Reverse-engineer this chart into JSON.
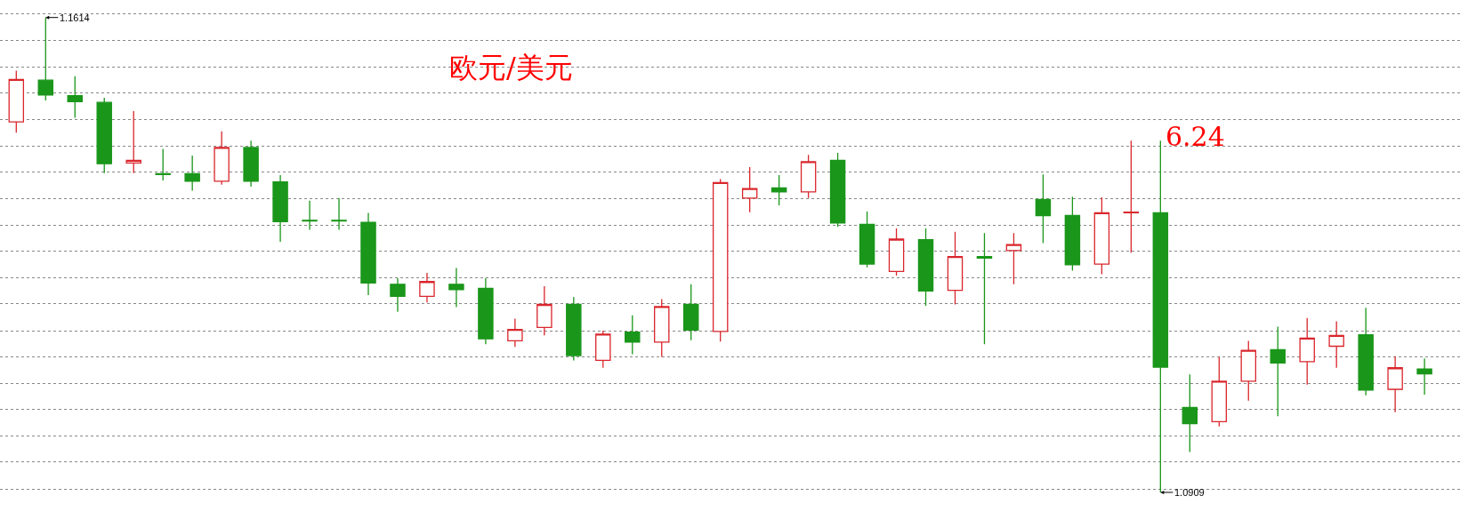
{
  "chart_data": {
    "type": "candlestick",
    "title": "欧元/美元",
    "categories": [
      null,
      null,
      null,
      null,
      null,
      null,
      null,
      null,
      null,
      null,
      null,
      null,
      null,
      null,
      null,
      null,
      null,
      null,
      null,
      null,
      null,
      null,
      null,
      null,
      null,
      null,
      null,
      null,
      null,
      null,
      null,
      null,
      null,
      null,
      null,
      null,
      null,
      null,
      null,
      null,
      null,
      null,
      null,
      null,
      null,
      null,
      null,
      null,
      null
    ],
    "ohlc": [
      [
        1.1459,
        1.1535,
        1.1443,
        1.1522
      ],
      [
        1.1521,
        1.1614,
        1.1491,
        1.1499
      ],
      [
        1.1498,
        1.1527,
        1.1465,
        1.1489
      ],
      [
        1.1488,
        1.1495,
        1.1383,
        1.1397
      ],
      [
        1.1398,
        1.1475,
        1.1383,
        1.1402
      ],
      [
        1.1382,
        1.1419,
        1.1372,
        1.1381
      ],
      [
        1.1382,
        1.1409,
        1.1357,
        1.1371
      ],
      [
        1.1371,
        1.1445,
        1.1366,
        1.1421
      ],
      [
        1.1421,
        1.1431,
        1.1363,
        1.1371
      ],
      [
        1.137,
        1.138,
        1.1281,
        1.1311
      ],
      [
        1.1313,
        1.1342,
        1.1299,
        1.1312
      ],
      [
        1.1313,
        1.1346,
        1.1299,
        1.1312
      ],
      [
        1.131,
        1.1324,
        1.1202,
        1.122
      ],
      [
        1.1218,
        1.1227,
        1.1177,
        1.12
      ],
      [
        1.12,
        1.1235,
        1.1191,
        1.1222
      ],
      [
        1.1218,
        1.1242,
        1.1184,
        1.121
      ],
      [
        1.1212,
        1.1227,
        1.1129,
        1.1137
      ],
      [
        1.1134,
        1.1167,
        1.1125,
        1.1151
      ],
      [
        1.1154,
        1.1215,
        1.1142,
        1.1188
      ],
      [
        1.1188,
        1.1199,
        1.1105,
        1.1112
      ],
      [
        1.1105,
        1.1149,
        1.1094,
        1.1144
      ],
      [
        1.1147,
        1.1172,
        1.1114,
        1.1132
      ],
      [
        1.1132,
        1.1196,
        1.111,
        1.1185
      ],
      [
        1.1188,
        1.1218,
        1.1135,
        1.115
      ],
      [
        1.1148,
        1.1374,
        1.1133,
        1.1369
      ],
      [
        1.1346,
        1.1392,
        1.1325,
        1.136
      ],
      [
        1.1361,
        1.138,
        1.1335,
        1.1355
      ],
      [
        1.1355,
        1.141,
        1.1346,
        1.14
      ],
      [
        1.1402,
        1.1413,
        1.1303,
        1.1309
      ],
      [
        1.1307,
        1.1326,
        1.1243,
        1.1248
      ],
      [
        1.1237,
        1.1301,
        1.1231,
        1.1285
      ],
      [
        1.1284,
        1.1301,
        1.1186,
        1.1208
      ],
      [
        1.1209,
        1.1296,
        1.1188,
        1.1259
      ],
      [
        1.1259,
        1.1294,
        1.1129,
        1.1257
      ],
      [
        1.1268,
        1.1294,
        1.1218,
        1.1277
      ],
      [
        1.1344,
        1.1381,
        1.1279,
        1.132
      ],
      [
        1.132,
        1.1348,
        1.1238,
        1.1247
      ],
      [
        1.1248,
        1.1347,
        1.1233,
        1.1324
      ],
      [
        1.1324,
        1.1431,
        1.1265,
        1.1325
      ],
      [
        1.1324,
        1.1431,
        1.0909,
        1.1095
      ],
      [
        1.1035,
        1.1084,
        1.0969,
        1.1011
      ],
      [
        1.1014,
        1.111,
        1.1007,
        1.1074
      ],
      [
        1.1074,
        1.1134,
        1.1045,
        1.112
      ],
      [
        1.1121,
        1.1155,
        1.1022,
        1.1101
      ],
      [
        1.1103,
        1.1168,
        1.1069,
        1.1138
      ],
      [
        1.1126,
        1.1163,
        1.1094,
        1.1142
      ],
      [
        1.1143,
        1.1183,
        1.1053,
        1.1061
      ],
      [
        1.1062,
        1.1111,
        1.1028,
        1.1094
      ],
      [
        1.1092,
        1.1108,
        1.1054,
        1.1085
      ]
    ],
    "colors": [
      "#d9262c",
      "#1a961a",
      "#1a961a",
      "#1a961a",
      "#d9262c",
      "#1a961a",
      "#1a961a",
      "#d9262c",
      "#1a961a",
      "#1a961a",
      "#1a961a",
      "#1a961a",
      "#1a961a",
      "#1a961a",
      "#d9262c",
      "#1a961a",
      "#1a961a",
      "#d9262c",
      "#d9262c",
      "#1a961a",
      "#d9262c",
      "#1a961a",
      "#d9262c",
      "#1a961a",
      "#d9262c",
      "#d9262c",
      "#1a961a",
      "#d9262c",
      "#1a961a",
      "#1a961a",
      "#d9262c",
      "#1a961a",
      "#d9262c",
      "#1a961a",
      "#d9262c",
      "#1a961a",
      "#1a961a",
      "#d9262c",
      "#d9262c",
      "#1a961a",
      "#1a961a",
      "#d9262c",
      "#d9262c",
      "#1a961a",
      "#d9262c",
      "#d9262c",
      "#1a961a",
      "#d9262c",
      "#1a961a"
    ],
    "ylim": [
      1.0868,
      1.164
    ],
    "yticks": [
      {
        "value": 1.1619,
        "label": null
      },
      {
        "value": 1.158,
        "label": null
      },
      {
        "value": 1.1541,
        "label": null
      },
      {
        "value": 1.1502,
        "label": null
      },
      {
        "value": 1.1462,
        "label": null
      },
      {
        "value": 1.1423,
        "label": null
      },
      {
        "value": 1.1384,
        "label": null
      },
      {
        "value": 1.1345,
        "label": null
      },
      {
        "value": 1.1306,
        "label": null
      },
      {
        "value": 1.1267,
        "label": null
      },
      {
        "value": 1.1228,
        "label": null
      },
      {
        "value": 1.1189,
        "label": null
      },
      {
        "value": 1.1149,
        "label": null
      },
      {
        "value": 1.111,
        "label": null
      },
      {
        "value": 1.1071,
        "label": null
      },
      {
        "value": 1.1032,
        "label": null
      },
      {
        "value": 1.0993,
        "label": null
      },
      {
        "value": 1.0954,
        "label": null
      },
      {
        "value": 1.0914,
        "label": null
      }
    ],
    "grid": "y",
    "annotations": [
      "1.1614",
      "1.0909",
      "6.24"
    ]
  }
}
